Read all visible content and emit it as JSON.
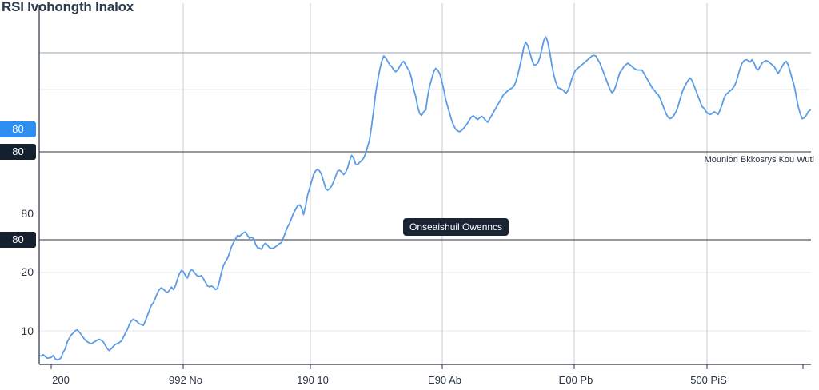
{
  "chart_data": {
    "type": "line",
    "title": "RSI Ivohongth Inalox",
    "xlabel": "",
    "ylabel": "",
    "ylim": [
      8,
      108
    ],
    "x_tick_labels": [
      "200",
      "992 No",
      "190 10",
      "E90 Ab",
      "E00 Pb",
      "500 PiS"
    ],
    "y_tick_labels": [
      "10",
      "20",
      "80"
    ],
    "badges": [
      {
        "label": "80",
        "style": "blue"
      },
      {
        "label": "80",
        "style": "dark"
      },
      {
        "label": "80",
        "style": "dark"
      }
    ],
    "horizontal_lines": [
      {
        "value": 100,
        "color": "#9aa3ab"
      },
      {
        "value": 70,
        "color": "#2c3640",
        "note": "Mounlon Bkkosrys Kou Wuti"
      },
      {
        "value": 40,
        "color": "#2c3640",
        "label": "Onseaishuil Owenncs"
      }
    ],
    "grid": true,
    "series": [
      {
        "color": "#5b9ce6",
        "values": [
          10.5,
          10.4,
          10.8,
          10.3,
          9.8,
          9.9,
          10,
          10.6,
          9.6,
          9.3,
          9.4,
          10,
          11.5,
          12.5,
          14.5,
          15.5,
          16.5,
          17,
          17.7,
          17.9,
          17.3,
          16.5,
          15.7,
          15,
          14.5,
          14.2,
          13.9,
          14.3,
          14.6,
          15,
          15.2,
          14.9,
          14.5,
          13.5,
          12.5,
          12,
          12.5,
          13.2,
          13.7,
          14,
          14.3,
          14.7,
          15.8,
          17,
          18,
          19.5,
          20.5,
          21,
          20.6,
          20.2,
          19.6,
          19.5,
          19.2,
          20.5,
          22,
          23.5,
          25,
          25.7,
          27,
          28.5,
          29.5,
          30,
          29.6,
          29,
          28.6,
          29.3,
          30.2,
          29.5,
          30.6,
          32.5,
          34,
          35,
          34.6,
          33.5,
          32.8,
          34.5,
          35.2,
          34.8,
          34,
          33.4,
          33.3,
          33.5,
          32.6,
          31.6,
          30.6,
          30.3,
          30.5,
          30.2,
          29.5,
          29.8,
          32,
          34.5,
          36.5,
          37.5,
          38.5,
          40,
          41.8,
          43,
          44,
          45,
          44.8,
          45.3,
          45.8,
          46,
          45,
          44.2,
          44.5,
          44.2,
          42.5,
          41.5,
          41.4,
          41,
          42.3,
          42.8,
          42.2,
          41.5,
          41.3,
          41.4,
          41.8,
          42.2,
          42.7,
          43,
          44.5,
          46,
          47.5,
          48.5,
          50,
          51.5,
          52.5,
          53.5,
          53.8,
          53,
          51,
          53.5,
          56.5,
          58.5,
          60.5,
          62.5,
          63.5,
          64,
          63.5,
          62.5,
          60.5,
          58.5,
          58,
          58.5,
          59.2,
          60.5,
          62,
          63.5,
          63.7,
          63.2,
          62.5,
          63.1,
          64.5,
          66.5,
          68,
          67.2,
          65.5,
          65.3,
          66,
          66.5,
          67.2,
          68.5,
          70.5,
          72.5,
          76.5,
          81,
          86,
          89.5,
          92.5,
          95,
          96.5,
          96,
          95,
          94,
          93.5,
          92.5,
          92,
          92.5,
          93.5,
          94.5,
          95,
          94,
          93,
          92,
          90,
          87,
          85,
          82,
          80,
          79.5,
          80.5,
          81,
          85,
          88,
          90,
          92,
          93,
          92.5,
          91.5,
          89.5,
          87,
          84,
          82,
          80,
          78,
          76.5,
          75.5,
          75,
          74.8,
          75.2,
          75.8,
          76.5,
          77.3,
          78.3,
          79.1,
          79.3,
          78.7,
          78.3,
          78.8,
          79.2,
          78.7,
          78,
          77.5,
          78.5,
          79.5,
          80.5,
          81.5,
          82.5,
          83.5,
          84.5,
          85.5,
          86,
          86.5,
          87,
          87.3,
          87.8,
          89,
          91,
          93.5,
          96,
          99,
          100.5,
          99.5,
          97.5,
          95.5,
          94,
          94,
          94.5,
          96,
          98.5,
          101,
          102,
          100.5,
          97.5,
          94,
          91,
          89,
          87.5,
          87.2,
          87,
          86.5,
          85.8,
          86.5,
          88,
          90,
          91.5,
          92.5,
          93,
          93.5,
          94,
          94.5,
          95,
          95.5,
          96,
          96.5,
          96.7,
          96.5,
          95.5,
          94.5,
          93,
          91.5,
          90,
          88.5,
          87,
          86,
          86.5,
          88,
          90,
          91.8,
          92.5,
          93.5,
          94,
          94.5,
          94,
          93.5,
          93,
          92.6,
          92.5,
          92.5,
          92.5,
          91.5,
          90.5,
          89.5,
          88.5,
          87.5,
          86.8,
          86,
          85.5,
          84.5,
          83,
          81.5,
          80,
          79,
          78.5,
          78.8,
          79.5,
          80.5,
          82,
          84,
          86,
          87.5,
          88.5,
          89.5,
          90.2,
          89.5,
          88,
          86.5,
          85,
          83.5,
          82,
          81.5,
          80.5,
          80,
          79.7,
          80,
          80.5,
          80.2,
          79.7,
          81,
          82.5,
          84.5,
          85.5,
          86,
          86.5,
          87,
          87.8,
          89,
          91,
          93,
          94.5,
          95.2,
          95.5,
          95.2,
          94.8,
          95.5,
          94.5,
          93,
          92.5,
          93.5,
          94.5,
          95,
          95.2,
          95,
          94.5,
          94,
          93.5,
          92.5,
          91.5,
          92.5,
          93.5,
          94.5,
          95,
          94,
          92,
          90,
          88,
          85,
          82,
          80,
          78.5,
          78.7,
          79.5,
          80.5,
          81
        ]
      }
    ]
  }
}
